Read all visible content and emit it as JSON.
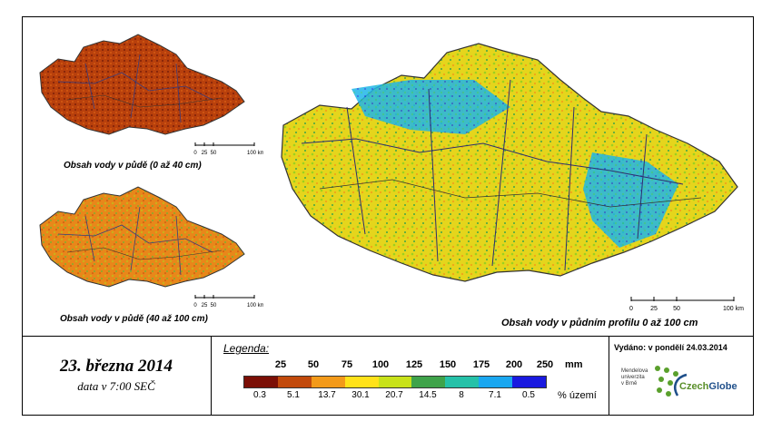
{
  "maps": [
    {
      "id": "topsoil",
      "caption": "Obsah vody v půdě (0 až 40 cm)"
    },
    {
      "id": "subsoil",
      "caption": "Obsah vody v půdě (40 až 100 cm)"
    },
    {
      "id": "profile",
      "caption": "Obsah vody v půdním profilu 0 až 100 cm"
    }
  ],
  "scale_labels": [
    "0",
    "25",
    "50",
    "100 km"
  ],
  "date_title": "23. března 2014",
  "date_subtitle": "data v 7:00 SEČ",
  "legend": {
    "title": "Legenda:",
    "top_values": [
      "25",
      "50",
      "75",
      "100",
      "125",
      "150",
      "175",
      "200",
      "250"
    ],
    "unit_top": "mm",
    "bottom_values": [
      "0.3",
      "5.1",
      "13.7",
      "30.1",
      "20.7",
      "14.5",
      "8",
      "7.1",
      "0.5"
    ],
    "unit_bottom": "% území",
    "colors": [
      "#7b0f06",
      "#c24a0c",
      "#f39a1a",
      "#ffe21a",
      "#c8e21a",
      "#3fa34a",
      "#25c1a8",
      "#1aa7f0",
      "#1a1ae0"
    ]
  },
  "issued": "Vydáno: v pondělí 24.03.2014",
  "logos": {
    "mendel": "Mendelova univerzita v Brně",
    "czechglobe_a": "Czech",
    "czechglobe_b": "Globe"
  }
}
